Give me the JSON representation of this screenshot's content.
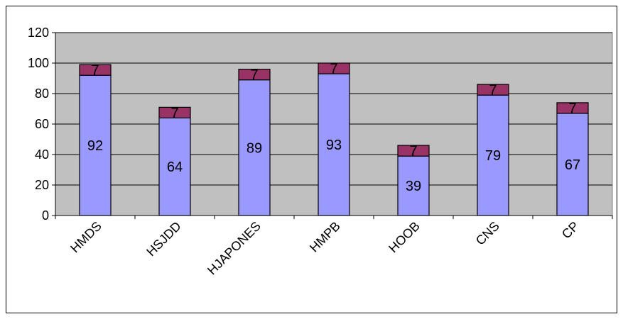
{
  "chart_data": {
    "type": "bar",
    "stacked": true,
    "categories": [
      "HMDS",
      "HSJDD",
      "HJAPONES",
      "HMPB",
      "HOOB",
      "CNS",
      "CP"
    ],
    "series": [
      {
        "values": [
          92,
          64,
          89,
          93,
          39,
          79,
          67
        ],
        "color": "#9999ff",
        "labels": [
          "92",
          "64",
          "89",
          "93",
          "39",
          "79",
          "67"
        ]
      },
      {
        "values": [
          7,
          7,
          7,
          7,
          7,
          7,
          7
        ],
        "color": "#993366",
        "labels": [
          "7",
          "7",
          "7",
          "7",
          "7",
          "7",
          "7"
        ]
      }
    ],
    "yticks": [
      "0",
      "20",
      "40",
      "60",
      "80",
      "100",
      "120"
    ],
    "ylim": [
      0,
      120
    ],
    "grid": true,
    "plot_background": "#c0c0c0",
    "gridline_color": "#000000",
    "title": "",
    "xlabel": "",
    "ylabel": ""
  }
}
